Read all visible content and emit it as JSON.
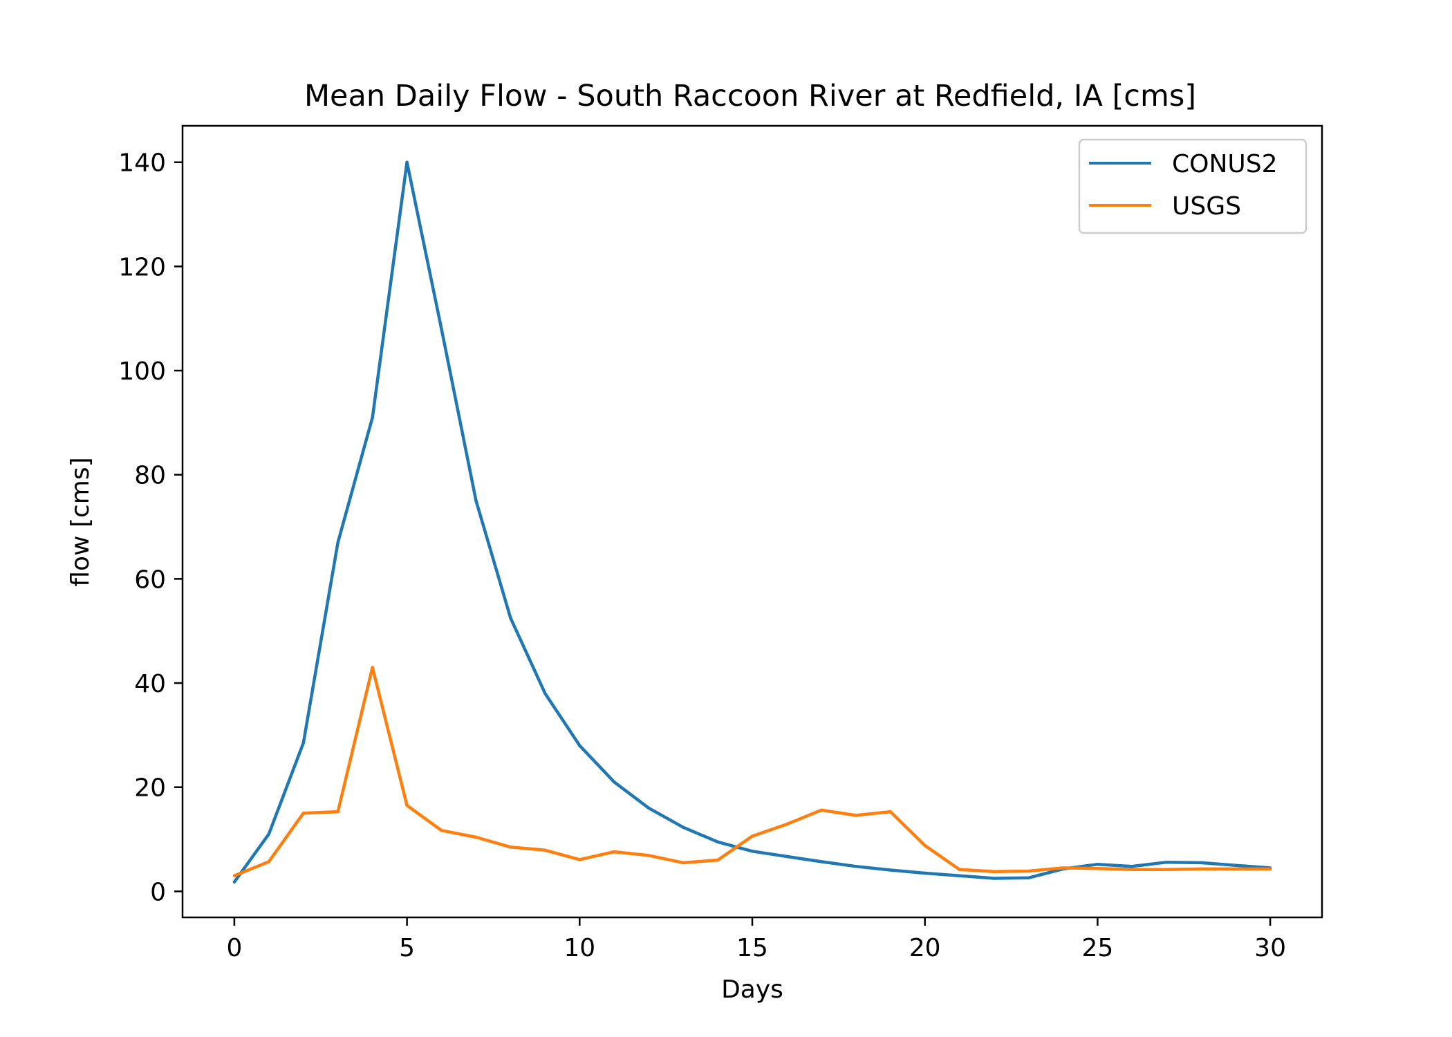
{
  "chart_data": {
    "type": "line",
    "title": "Mean Daily Flow - South Raccoon River at Redfield, IA [cms]",
    "xlabel": "Days",
    "ylabel": "flow [cms]",
    "xlim": [
      -1.5,
      31.5
    ],
    "ylim": [
      -5,
      147
    ],
    "xticks": [
      0,
      5,
      10,
      15,
      20,
      25,
      30
    ],
    "yticks": [
      0,
      20,
      40,
      60,
      80,
      100,
      120,
      140
    ],
    "grid": false,
    "legend_position": "top-right",
    "x": [
      0,
      1,
      2,
      3,
      4,
      5,
      6,
      7,
      8,
      9,
      10,
      11,
      12,
      13,
      14,
      15,
      16,
      17,
      18,
      19,
      20,
      21,
      22,
      23,
      24,
      25,
      26,
      27,
      28,
      29,
      30
    ],
    "series": [
      {
        "name": "CONUS2",
        "color": "#1f77b4",
        "values": [
          1.8,
          11,
          28.5,
          67,
          91,
          140,
          108,
          75,
          52.5,
          38,
          28,
          21,
          16,
          12.3,
          9.5,
          7.7,
          6.7,
          5.7,
          4.8,
          4.1,
          3.5,
          3.0,
          2.5,
          2.6,
          4.3,
          5.2,
          4.8,
          5.6,
          5.5,
          5.0,
          4.5
        ]
      },
      {
        "name": "USGS",
        "color": "#ff7f0e",
        "values": [
          3.0,
          5.7,
          15,
          15.3,
          43,
          16.5,
          11.7,
          10.4,
          8.5,
          7.9,
          6.1,
          7.6,
          6.9,
          5.5,
          6.0,
          10.6,
          12.9,
          15.6,
          14.6,
          15.3,
          8.8,
          4.2,
          3.8,
          3.9,
          4.5,
          4.4,
          4.2,
          4.2,
          4.3,
          4.3,
          4.3
        ]
      }
    ]
  }
}
